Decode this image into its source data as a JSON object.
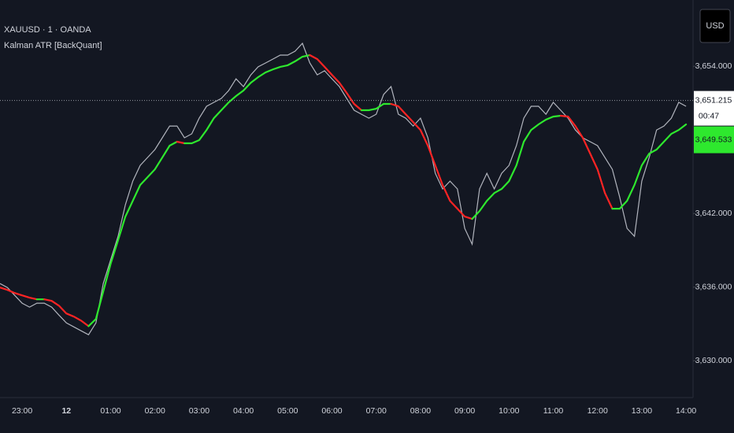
{
  "chart_data": {
    "type": "line",
    "title": "XAUUSD · 1 · OANDA",
    "subtitle": "Kalman ATR [BackQuant]",
    "currency_button": "USD",
    "categories": [
      null,
      null,
      null,
      "23:00",
      null,
      null,
      null,
      null,
      null,
      "12",
      null,
      null,
      null,
      null,
      null,
      "01:00",
      null,
      null,
      null,
      null,
      null,
      "02:00",
      null,
      null,
      null,
      null,
      null,
      "03:00",
      null,
      null,
      null,
      null,
      null,
      "04:00",
      null,
      null,
      null,
      null,
      null,
      "05:00",
      null,
      null,
      null,
      null,
      null,
      "06:00",
      null,
      null,
      null,
      null,
      null,
      "07:00",
      null,
      null,
      null,
      null,
      null,
      "08:00",
      null,
      null,
      null,
      null,
      null,
      "09:00",
      null,
      null,
      null,
      null,
      null,
      "10:00",
      null,
      null,
      null,
      null,
      null,
      "11:00",
      null,
      null,
      null,
      null,
      null,
      "12:00",
      null,
      null,
      null,
      null,
      null,
      "13:00",
      null,
      null,
      null,
      null,
      null,
      "14:00"
    ],
    "price": {
      "color": "#b2b5be",
      "values": [
        3636.29,
        3635.97,
        3635.33,
        3634.69,
        3634.37,
        3634.69,
        3634.69,
        3634.37,
        3633.72,
        3633.08,
        3632.76,
        3632.44,
        3632.12,
        3633.08,
        3636.29,
        3638.22,
        3640.14,
        3642.71,
        3644.64,
        3645.92,
        3646.56,
        3647.21,
        3648.17,
        3649.13,
        3649.13,
        3648.17,
        3648.49,
        3649.77,
        3650.74,
        3651.06,
        3651.38,
        3652.02,
        3652.98,
        3652.34,
        3653.3,
        3653.95,
        3654.27,
        3654.59,
        3654.91,
        3654.91,
        3655.23,
        3655.87,
        3654.27,
        3653.3,
        3653.63,
        3652.98,
        3652.34,
        3651.38,
        3650.42,
        3650.09,
        3649.77,
        3650.09,
        3651.7,
        3652.34,
        3650.09,
        3649.77,
        3649.13,
        3649.77,
        3648.17,
        3645.28,
        3644.0,
        3644.64,
        3644.0,
        3640.79,
        3639.5,
        3644.0,
        3645.28,
        3644.0,
        3645.28,
        3645.92,
        3647.53,
        3649.77,
        3650.74,
        3650.74,
        3650.09,
        3651.06,
        3650.42,
        3649.77,
        3648.81,
        3648.17,
        3647.85,
        3647.53,
        3646.56,
        3645.6,
        3643.35,
        3640.79,
        3640.14,
        3644.64,
        3646.56,
        3648.81,
        3649.13,
        3649.77,
        3651.06,
        3650.74
      ]
    },
    "series": [
      {
        "name": "Kalman ATR [BackQuant]",
        "up_color": "#2ee82e",
        "down_color": "#ff2424",
        "values": [
          3635.97,
          3635.78,
          3635.52,
          3635.33,
          3635.14,
          3635.01,
          3635.01,
          3634.88,
          3634.49,
          3633.85,
          3633.6,
          3633.27,
          3632.82,
          3633.4,
          3635.65,
          3637.9,
          3639.82,
          3641.75,
          3643.03,
          3644.32,
          3644.96,
          3645.6,
          3646.56,
          3647.53,
          3647.85,
          3647.72,
          3647.72,
          3647.98,
          3648.81,
          3649.77,
          3650.42,
          3651.06,
          3651.57,
          3652.02,
          3652.66,
          3653.11,
          3653.5,
          3653.75,
          3653.95,
          3654.08,
          3654.4,
          3654.78,
          3654.91,
          3654.59,
          3653.95,
          3653.3,
          3652.66,
          3651.83,
          3650.93,
          3650.42,
          3650.42,
          3650.54,
          3650.93,
          3650.93,
          3650.74,
          3650.09,
          3649.45,
          3648.81,
          3647.53,
          3645.92,
          3644.32,
          3643.03,
          3642.39,
          3641.75,
          3641.56,
          3642.2,
          3643.03,
          3643.67,
          3644.0,
          3644.64,
          3645.92,
          3647.85,
          3648.81,
          3649.26,
          3649.65,
          3649.9,
          3649.97,
          3649.9,
          3649.13,
          3648.17,
          3646.88,
          3645.6,
          3643.67,
          3642.39,
          3642.39,
          3643.03,
          3644.32,
          3645.92,
          3646.88,
          3647.21,
          3647.85,
          3648.49,
          3648.81,
          3649.26
        ]
      }
    ],
    "last_price": {
      "value": 3651.215,
      "label": "3,651.215"
    },
    "countdown": "00:47",
    "indicator_last": {
      "value": 3649.533,
      "label": "3,649.533"
    },
    "ylim": [
      3627.0,
      3659.4
    ],
    "yticks": [
      {
        "value": 3630,
        "label": "3,630.000"
      },
      {
        "value": 3636,
        "label": "3,636.000"
      },
      {
        "value": 3642,
        "label": "3,642.000"
      },
      {
        "value": 3654,
        "label": "3,654.000"
      }
    ],
    "grid": false
  }
}
